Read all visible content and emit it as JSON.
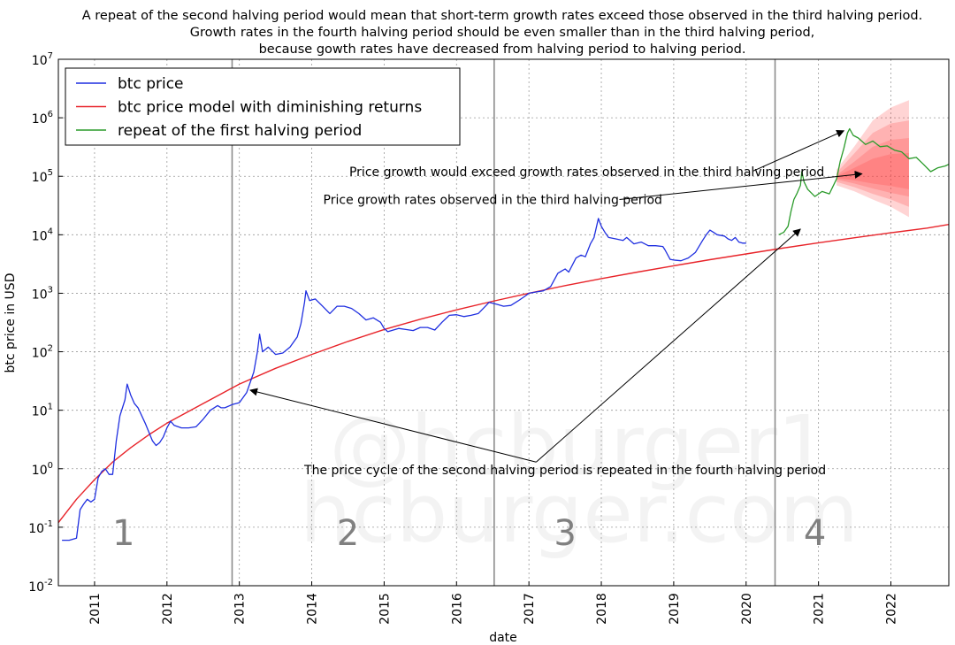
{
  "chart_data": {
    "type": "line",
    "title_lines": [
      "A repeat of the second halving period would mean that short-term growth rates exceed those observed in the third halving period.",
      "Growth rates in the fourth halving period should be even smaller than in the third halving period,",
      "because gowth rates have decreased from halving period to halving period."
    ],
    "xlabel": "date",
    "ylabel": "btc price in USD",
    "y_scale": "log",
    "xlim": [
      2010.5,
      2022.8
    ],
    "ylim": [
      0.01,
      10000000
    ],
    "x_ticks": [
      "2011",
      "2012",
      "2013",
      "2014",
      "2015",
      "2016",
      "2017",
      "2018",
      "2019",
      "2020",
      "2021",
      "2022"
    ],
    "y_ticks": [
      {
        "base": "10",
        "exp": "-2",
        "value": 0.01
      },
      {
        "base": "10",
        "exp": "-1",
        "value": 0.1
      },
      {
        "base": "10",
        "exp": "0",
        "value": 1
      },
      {
        "base": "10",
        "exp": "1",
        "value": 10
      },
      {
        "base": "10",
        "exp": "2",
        "value": 100
      },
      {
        "base": "10",
        "exp": "3",
        "value": 1000
      },
      {
        "base": "10",
        "exp": "4",
        "value": 10000
      },
      {
        "base": "10",
        "exp": "5",
        "value": 100000
      },
      {
        "base": "10",
        "exp": "6",
        "value": 1000000
      },
      {
        "base": "10",
        "exp": "7",
        "value": 10000000
      }
    ],
    "grid": true,
    "legend_position": "top-left",
    "halving_dates": [
      2012.9,
      2016.52,
      2020.4
    ],
    "period_labels": [
      {
        "label": "1",
        "x": 2011.4
      },
      {
        "label": "2",
        "x": 2014.5
      },
      {
        "label": "3",
        "x": 2017.5
      },
      {
        "label": "4",
        "x": 2020.95
      }
    ],
    "series": [
      {
        "name": "btc price",
        "color": "#1f2fe0",
        "points": [
          [
            2010.55,
            0.06
          ],
          [
            2010.65,
            0.06
          ],
          [
            2010.75,
            0.065
          ],
          [
            2010.8,
            0.2
          ],
          [
            2010.85,
            0.25
          ],
          [
            2010.9,
            0.3
          ],
          [
            2010.95,
            0.27
          ],
          [
            2011.0,
            0.3
          ],
          [
            2011.05,
            0.7
          ],
          [
            2011.1,
            0.9
          ],
          [
            2011.15,
            1.0
          ],
          [
            2011.2,
            0.8
          ],
          [
            2011.25,
            0.8
          ],
          [
            2011.3,
            3.0
          ],
          [
            2011.35,
            8.0
          ],
          [
            2011.42,
            15.0
          ],
          [
            2011.45,
            28.0
          ],
          [
            2011.5,
            18.0
          ],
          [
            2011.55,
            13.0
          ],
          [
            2011.6,
            11.0
          ],
          [
            2011.7,
            6.0
          ],
          [
            2011.8,
            3.0
          ],
          [
            2011.85,
            2.5
          ],
          [
            2011.9,
            2.8
          ],
          [
            2011.95,
            3.5
          ],
          [
            2012.0,
            5.0
          ],
          [
            2012.05,
            6.5
          ],
          [
            2012.1,
            5.5
          ],
          [
            2012.2,
            5.0
          ],
          [
            2012.3,
            5.0
          ],
          [
            2012.4,
            5.2
          ],
          [
            2012.5,
            7.0
          ],
          [
            2012.6,
            10.0
          ],
          [
            2012.7,
            12.0
          ],
          [
            2012.75,
            11.0
          ],
          [
            2012.8,
            11.0
          ],
          [
            2012.9,
            12.5
          ],
          [
            2013.0,
            13.5
          ],
          [
            2013.1,
            20.0
          ],
          [
            2013.15,
            30.0
          ],
          [
            2013.2,
            45.0
          ],
          [
            2013.25,
            100.0
          ],
          [
            2013.28,
            200.0
          ],
          [
            2013.32,
            100.0
          ],
          [
            2013.4,
            120.0
          ],
          [
            2013.5,
            90.0
          ],
          [
            2013.6,
            95.0
          ],
          [
            2013.7,
            120.0
          ],
          [
            2013.8,
            180.0
          ],
          [
            2013.85,
            300.0
          ],
          [
            2013.9,
            700.0
          ],
          [
            2013.92,
            1100.0
          ],
          [
            2013.97,
            750.0
          ],
          [
            2014.05,
            800.0
          ],
          [
            2014.15,
            600.0
          ],
          [
            2014.25,
            450.0
          ],
          [
            2014.35,
            600.0
          ],
          [
            2014.45,
            600.0
          ],
          [
            2014.55,
            550.0
          ],
          [
            2014.65,
            450.0
          ],
          [
            2014.75,
            350.0
          ],
          [
            2014.85,
            380.0
          ],
          [
            2014.95,
            320.0
          ],
          [
            2015.0,
            250.0
          ],
          [
            2015.05,
            220.0
          ],
          [
            2015.2,
            250.0
          ],
          [
            2015.3,
            240.0
          ],
          [
            2015.4,
            230.0
          ],
          [
            2015.5,
            260.0
          ],
          [
            2015.6,
            260.0
          ],
          [
            2015.7,
            235.0
          ],
          [
            2015.8,
            320.0
          ],
          [
            2015.9,
            420.0
          ],
          [
            2016.0,
            430.0
          ],
          [
            2016.1,
            400.0
          ],
          [
            2016.2,
            420.0
          ],
          [
            2016.3,
            450.0
          ],
          [
            2016.4,
            600.0
          ],
          [
            2016.45,
            700.0
          ],
          [
            2016.55,
            650.0
          ],
          [
            2016.65,
            600.0
          ],
          [
            2016.75,
            620.0
          ],
          [
            2016.85,
            740.0
          ],
          [
            2016.95,
            900.0
          ],
          [
            2017.0,
            1000.0
          ],
          [
            2017.1,
            1050.0
          ],
          [
            2017.2,
            1100.0
          ],
          [
            2017.3,
            1300.0
          ],
          [
            2017.4,
            2200.0
          ],
          [
            2017.5,
            2600.0
          ],
          [
            2017.55,
            2300.0
          ],
          [
            2017.65,
            4000.0
          ],
          [
            2017.72,
            4500.0
          ],
          [
            2017.78,
            4200.0
          ],
          [
            2017.85,
            7000.0
          ],
          [
            2017.9,
            9000.0
          ],
          [
            2017.96,
            19000.0
          ],
          [
            2018.0,
            14000.0
          ],
          [
            2018.05,
            11000.0
          ],
          [
            2018.1,
            9000.0
          ],
          [
            2018.2,
            8500.0
          ],
          [
            2018.3,
            8000.0
          ],
          [
            2018.35,
            9000.0
          ],
          [
            2018.45,
            7000.0
          ],
          [
            2018.55,
            7500.0
          ],
          [
            2018.65,
            6500.0
          ],
          [
            2018.75,
            6500.0
          ],
          [
            2018.85,
            6300.0
          ],
          [
            2018.88,
            5500.0
          ],
          [
            2018.95,
            3800.0
          ],
          [
            2019.0,
            3700.0
          ],
          [
            2019.1,
            3600.0
          ],
          [
            2019.2,
            4000.0
          ],
          [
            2019.3,
            5000.0
          ],
          [
            2019.4,
            8000.0
          ],
          [
            2019.45,
            10000.0
          ],
          [
            2019.5,
            12000.0
          ],
          [
            2019.55,
            11000.0
          ],
          [
            2019.6,
            10000.0
          ],
          [
            2019.7,
            9500.0
          ],
          [
            2019.75,
            8500.0
          ],
          [
            2019.8,
            8000.0
          ],
          [
            2019.85,
            9000.0
          ],
          [
            2019.9,
            7500.0
          ],
          [
            2019.95,
            7200.0
          ],
          [
            2020.0,
            7200.0
          ]
        ]
      },
      {
        "name": "btc price model with diminishing returns",
        "color": "#e8242a",
        "points": [
          [
            2010.5,
            0.12
          ],
          [
            2010.75,
            0.3
          ],
          [
            2011.0,
            0.65
          ],
          [
            2011.25,
            1.3
          ],
          [
            2011.5,
            2.3
          ],
          [
            2011.75,
            3.8
          ],
          [
            2012.0,
            6.0
          ],
          [
            2012.5,
            13.0
          ],
          [
            2013.0,
            28.0
          ],
          [
            2013.5,
            52.0
          ],
          [
            2014.0,
            90.0
          ],
          [
            2014.5,
            150.0
          ],
          [
            2015.0,
            240.0
          ],
          [
            2015.5,
            360.0
          ],
          [
            2016.0,
            520.0
          ],
          [
            2016.5,
            730.0
          ],
          [
            2017.0,
            1000.0
          ],
          [
            2017.5,
            1350.0
          ],
          [
            2018.0,
            1780.0
          ],
          [
            2018.5,
            2300.0
          ],
          [
            2019.0,
            2950.0
          ],
          [
            2019.5,
            3750.0
          ],
          [
            2020.0,
            4700.0
          ],
          [
            2020.5,
            5900.0
          ],
          [
            2021.0,
            7300.0
          ],
          [
            2021.5,
            8900.0
          ],
          [
            2022.0,
            10800.0
          ],
          [
            2022.5,
            13000.0
          ],
          [
            2022.8,
            15000.0
          ]
        ]
      },
      {
        "name": "repeat of the first halving period",
        "color": "#2a9b2a",
        "points": [
          [
            2020.45,
            10000.0
          ],
          [
            2020.52,
            11000.0
          ],
          [
            2020.58,
            14000.0
          ],
          [
            2020.62,
            25000.0
          ],
          [
            2020.66,
            40000.0
          ],
          [
            2020.7,
            50000.0
          ],
          [
            2020.75,
            70000.0
          ],
          [
            2020.77,
            120000.0
          ],
          [
            2020.8,
            80000.0
          ],
          [
            2020.85,
            60000.0
          ],
          [
            2020.95,
            45000.0
          ],
          [
            2021.05,
            55000.0
          ],
          [
            2021.15,
            50000.0
          ],
          [
            2021.25,
            90000.0
          ],
          [
            2021.3,
            180000.0
          ],
          [
            2021.35,
            300000.0
          ],
          [
            2021.4,
            550000.0
          ],
          [
            2021.43,
            650000.0
          ],
          [
            2021.48,
            500000.0
          ],
          [
            2021.55,
            450000.0
          ],
          [
            2021.65,
            350000.0
          ],
          [
            2021.75,
            400000.0
          ],
          [
            2021.85,
            320000.0
          ],
          [
            2021.95,
            330000.0
          ],
          [
            2022.05,
            280000.0
          ],
          [
            2022.15,
            260000.0
          ],
          [
            2022.25,
            200000.0
          ],
          [
            2022.35,
            210000.0
          ],
          [
            2022.45,
            160000.0
          ],
          [
            2022.55,
            120000.0
          ],
          [
            2022.65,
            140000.0
          ],
          [
            2022.75,
            150000.0
          ],
          [
            2022.8,
            160000.0
          ]
        ]
      }
    ],
    "forecast_band": {
      "color": "#ff3b3b",
      "x": [
        2021.25,
        2021.5,
        2021.75,
        2022.0,
        2022.25
      ],
      "bands": [
        {
          "low": [
            70000,
            55000,
            40000,
            30000,
            20000
          ],
          "high": [
            130000,
            330000,
            900000,
            1500000,
            2000000
          ]
        },
        {
          "low": [
            80000,
            65000,
            50000,
            40000,
            30000
          ],
          "high": [
            115000,
            250000,
            550000,
            800000,
            900000
          ]
        },
        {
          "low": [
            88000,
            75000,
            62000,
            52000,
            45000
          ],
          "high": [
            105000,
            180000,
            320000,
            420000,
            450000
          ]
        },
        {
          "low": [
            93000,
            85000,
            75000,
            68000,
            60000
          ],
          "high": [
            100000,
            140000,
            200000,
            240000,
            250000
          ]
        }
      ]
    },
    "annotations": [
      {
        "text": "Price growth would exceed growth rates observed in the third halving period",
        "text_x": 2017.8,
        "text_y": 100000,
        "target_x": 2021.35,
        "target_y": 600000
      },
      {
        "text": "Price growth rates observed in the third halving period",
        "text_x": 2016.5,
        "text_y": 40000,
        "target_x": 2021.6,
        "target_y": 110000
      },
      {
        "text": "The price cycle of the second halving period is repeated in the fourth halving period",
        "text_x": 2017.5,
        "text_y": 1.0,
        "source_x": 2017.1,
        "source_y": 1.3,
        "targets": [
          [
            2013.15,
            22.0
          ],
          [
            2020.75,
            12500.0
          ]
        ]
      }
    ],
    "watermark_lines": [
      "@hcburger1",
      "hcburger.com"
    ]
  }
}
